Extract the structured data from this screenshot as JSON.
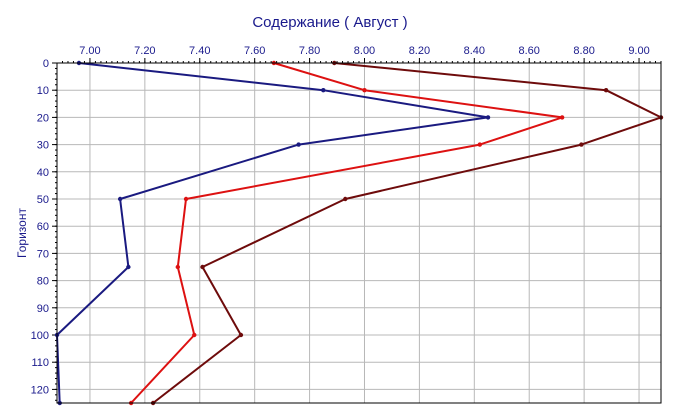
{
  "chart_data": {
    "type": "line",
    "orientation": "vertical-depth",
    "title": "Содержание    ( Август )",
    "xlabel": "",
    "ylabel": "Горизонт",
    "x_axis_position": "top",
    "y_axis_inverted": true,
    "xlim": [
      6.88,
      9.08
    ],
    "ylim": [
      0,
      125
    ],
    "x_ticks": [
      "7.00",
      "7.20",
      "7.40",
      "7.60",
      "7.80",
      "8.00",
      "8.20",
      "8.40",
      "8.60",
      "8.80",
      "9.00"
    ],
    "x_tick_values": [
      7.0,
      7.2,
      7.4,
      7.6,
      7.8,
      8.0,
      8.2,
      8.4,
      8.6,
      8.8,
      9.0
    ],
    "y_ticks": [
      "0",
      "10",
      "20",
      "30",
      "40",
      "50",
      "60",
      "70",
      "80",
      "90",
      "100",
      "110",
      "120"
    ],
    "y_tick_values": [
      0,
      10,
      20,
      30,
      40,
      50,
      60,
      70,
      80,
      90,
      100,
      110,
      120
    ],
    "grid": true,
    "series": [
      {
        "color": "#1a1a80",
        "points": [
          {
            "x": 6.96,
            "y": 0
          },
          {
            "x": 7.85,
            "y": 10
          },
          {
            "x": 8.45,
            "y": 20
          },
          {
            "x": 7.76,
            "y": 30
          },
          {
            "x": 7.11,
            "y": 50
          },
          {
            "x": 7.14,
            "y": 75
          },
          {
            "x": 6.88,
            "y": 100
          },
          {
            "x": 6.89,
            "y": 125
          }
        ]
      },
      {
        "color": "#dd1111",
        "points": [
          {
            "x": 7.67,
            "y": 0
          },
          {
            "x": 8.0,
            "y": 10
          },
          {
            "x": 8.72,
            "y": 20
          },
          {
            "x": 8.42,
            "y": 30
          },
          {
            "x": 7.35,
            "y": 50
          },
          {
            "x": 7.32,
            "y": 75
          },
          {
            "x": 7.38,
            "y": 100
          },
          {
            "x": 7.15,
            "y": 125
          }
        ]
      },
      {
        "color": "#6e0b0b",
        "points": [
          {
            "x": 7.89,
            "y": 0
          },
          {
            "x": 8.88,
            "y": 10
          },
          {
            "x": 9.08,
            "y": 20
          },
          {
            "x": 8.79,
            "y": 30
          },
          {
            "x": 7.93,
            "y": 50
          },
          {
            "x": 7.41,
            "y": 75
          },
          {
            "x": 7.55,
            "y": 100
          },
          {
            "x": 7.23,
            "y": 125
          }
        ]
      }
    ]
  }
}
